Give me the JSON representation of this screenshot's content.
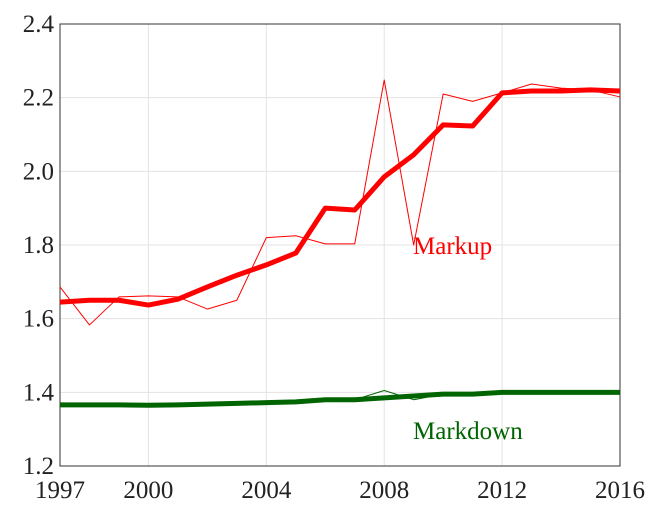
{
  "chart_data": {
    "type": "line",
    "x": [
      1997,
      1998,
      1999,
      2000,
      2001,
      2002,
      2003,
      2004,
      2005,
      2006,
      2007,
      2008,
      2009,
      2010,
      2011,
      2012,
      2013,
      2014,
      2015,
      2016
    ],
    "series": [
      {
        "name": "Markup",
        "color": "#ff0000",
        "width": 5,
        "values": [
          1.645,
          1.65,
          1.65,
          1.637,
          1.653,
          1.686,
          1.718,
          1.746,
          1.778,
          1.9,
          1.895,
          1.985,
          2.045,
          2.126,
          2.123,
          2.213,
          2.218,
          2.218,
          2.221,
          2.218
        ]
      },
      {
        "color": "#ff0000",
        "width": 1,
        "values": [
          1.686,
          1.583,
          1.659,
          1.662,
          1.659,
          1.626,
          1.65,
          1.82,
          1.825,
          1.803,
          1.803,
          2.248,
          1.8,
          2.21,
          2.19,
          2.213,
          2.237,
          2.226,
          2.221,
          2.202
        ]
      },
      {
        "name": "Markdown",
        "color": "#006400",
        "width": 5,
        "values": [
          1.366,
          1.366,
          1.366,
          1.365,
          1.366,
          1.368,
          1.37,
          1.372,
          1.374,
          1.38,
          1.38,
          1.385,
          1.39,
          1.395,
          1.395,
          1.4,
          1.4,
          1.4,
          1.4,
          1.4
        ]
      },
      {
        "color": "#006400",
        "width": 1,
        "values": [
          1.366,
          1.366,
          1.366,
          1.365,
          1.366,
          1.368,
          1.37,
          1.372,
          1.374,
          1.38,
          1.38,
          1.405,
          1.38,
          1.395,
          1.395,
          1.4,
          1.4,
          1.4,
          1.4,
          1.4
        ]
      }
    ],
    "xlim": [
      1997,
      2016
    ],
    "xticks": [
      1997,
      2000,
      2004,
      2008,
      2012,
      2016
    ],
    "ylim": [
      1.2,
      2.4
    ],
    "yticks": [
      {
        "value": 1.2,
        "label": "1.2"
      },
      {
        "value": 1.4,
        "label": "1.4"
      },
      {
        "value": 1.6,
        "label": "1.6"
      },
      {
        "value": 1.8,
        "label": "1.8"
      },
      {
        "value": 2.0,
        "label": "2.0"
      },
      {
        "value": 2.2,
        "label": "2.2"
      },
      {
        "value": 2.4,
        "label": "2.4"
      }
    ],
    "grid": true
  }
}
